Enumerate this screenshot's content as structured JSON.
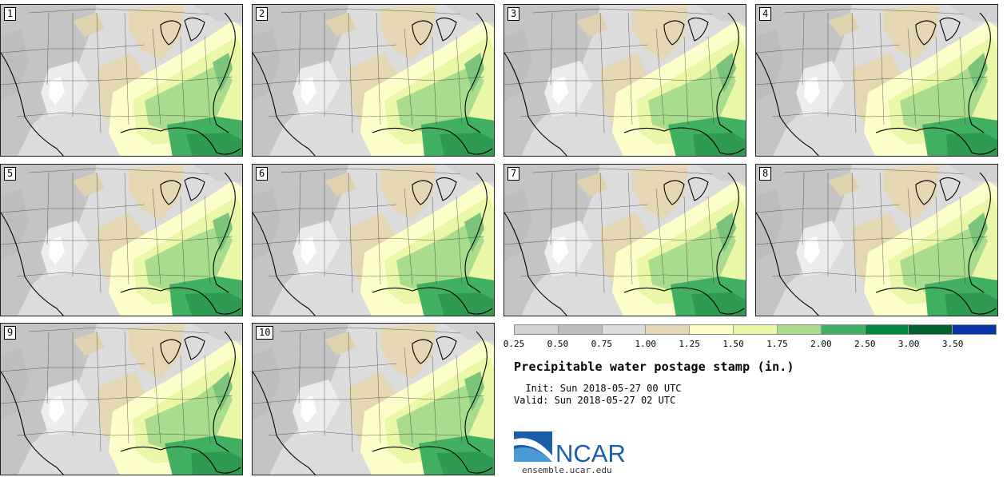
{
  "stamps": [
    {
      "label": "1"
    },
    {
      "label": "2"
    },
    {
      "label": "3"
    },
    {
      "label": "4"
    },
    {
      "label": "5"
    },
    {
      "label": "6"
    },
    {
      "label": "7"
    },
    {
      "label": "8"
    },
    {
      "label": "9"
    },
    {
      "label": "10"
    }
  ],
  "colorbar": {
    "colors": [
      "#d2d2d2",
      "#bcbcbc",
      "#dcdcdc",
      "#e6d7b4",
      "#fefecb",
      "#eaf7a6",
      "#a9dc8d",
      "#42b063",
      "#00893e",
      "#005f2b",
      "#0a32a8"
    ],
    "ticks": [
      "0.25",
      "0.50",
      "0.75",
      "1.00",
      "1.25",
      "1.50",
      "1.75",
      "2.00",
      "2.50",
      "3.00",
      "3.50"
    ]
  },
  "title": "Precipitable water postage stamp (in.)",
  "init_line": "  Init: Sun 2018-05-27 00 UTC",
  "valid_line": "Valid: Sun 2018-05-27 02 UTC",
  "logo": {
    "text": "NCAR",
    "url": "ensemble.ucar.edu",
    "brand_color": "#1a5fa8"
  }
}
